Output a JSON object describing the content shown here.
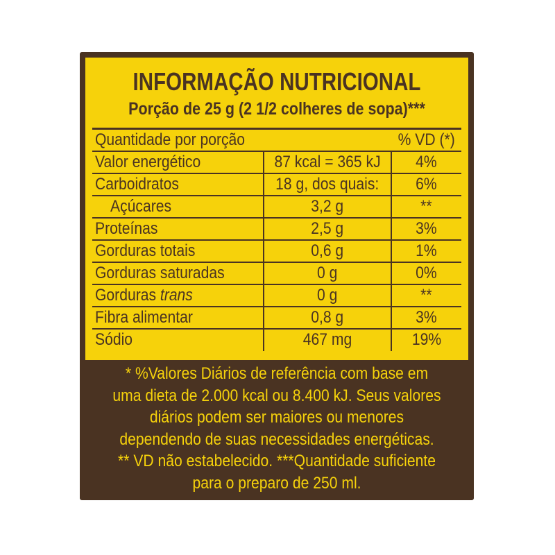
{
  "label": {
    "title": "INFORMAÇÃO NUTRICIONAL",
    "serving": "Porção de  25 g (2 1/2 colheres de sopa)***",
    "header": {
      "quantity_label": "Quantidade por porção",
      "vd_label": "% VD (*)"
    },
    "rows": [
      {
        "name": "Valor energético",
        "amount": "87 kcal = 365 kJ",
        "vd": "4%"
      },
      {
        "name": "Carboidratos",
        "amount": "18 g, dos quais:",
        "vd": "6%"
      },
      {
        "name": "Açúcares",
        "amount": "3,2 g",
        "vd": "**"
      },
      {
        "name": "Proteínas",
        "amount": "2,5 g",
        "vd": "3%"
      },
      {
        "name": "Gorduras totais",
        "amount": "0,6 g",
        "vd": "1%"
      },
      {
        "name": "Gorduras saturadas",
        "amount": "0 g",
        "vd": "0%"
      },
      {
        "name_prefix": "Gorduras",
        "name_italic": "trans",
        "amount": "0 g",
        "vd": "**"
      },
      {
        "name": "Fibra alimentar",
        "amount": "0,8 g",
        "vd": "3%"
      },
      {
        "name": "Sódio",
        "amount": "467 mg",
        "vd": "19%"
      }
    ],
    "footnote_lines": [
      "* %Valores Diários de referência com base em",
      "uma dieta de 2.000 kcal ou 8.400 kJ. Seus valores",
      "diários podem ser maiores ou menores",
      "dependendo de suas necessidades energéticas.",
      "** VD não estabelecido. ***Quantidade suficiente",
      "para o preparo de 250 ml."
    ],
    "colors": {
      "brown": "#4a3322",
      "yellow": "#f6d20b"
    }
  }
}
